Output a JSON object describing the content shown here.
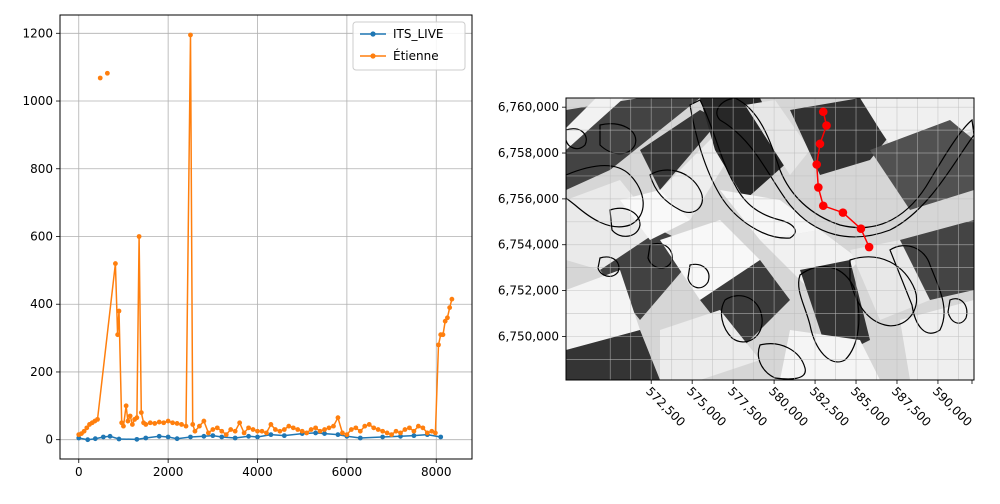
{
  "chart_data": [
    {
      "type": "line",
      "title": "",
      "xlabel": "",
      "ylabel": "",
      "xlim": [
        -420,
        8800
      ],
      "ylim": [
        -57,
        1254
      ],
      "xticks": [
        0,
        2000,
        4000,
        6000,
        8000
      ],
      "yticks": [
        0,
        200,
        400,
        600,
        800,
        1000,
        1200
      ],
      "grid": true,
      "legend": "top-right",
      "series": [
        {
          "name": "ITS_LIVE",
          "color": "#1f77b4",
          "x": [
            0,
            200,
            370,
            550,
            700,
            900,
            1300,
            1500,
            1800,
            2000,
            2200,
            2500,
            2800,
            3000,
            3200,
            3500,
            3800,
            4000,
            4300,
            4600,
            5000,
            5300,
            5500,
            5800,
            6000,
            6300,
            6800,
            7200,
            7500,
            7800,
            8100
          ],
          "values": [
            5,
            0,
            3,
            8,
            10,
            2,
            1,
            5,
            10,
            8,
            3,
            8,
            10,
            12,
            8,
            5,
            10,
            8,
            15,
            12,
            18,
            20,
            18,
            15,
            10,
            5,
            8,
            10,
            12,
            15,
            8
          ]
        },
        {
          "name": "Étienne",
          "color": "#ff7f0e",
          "x": [
            0,
            60,
            120,
            180,
            240,
            300,
            360,
            420,
            820,
            870,
            900,
            960,
            1000,
            1060,
            1100,
            1150,
            1200,
            1250,
            1300,
            1350,
            1400,
            1450,
            1500,
            1600,
            1700,
            1800,
            1900,
            2000,
            2100,
            2200,
            2300,
            2400,
            2500,
            2550,
            2600,
            2700,
            2800,
            2900,
            3000,
            3100,
            3200,
            3300,
            3400,
            3500,
            3600,
            3700,
            3800,
            3900,
            4000,
            4100,
            4200,
            4300,
            4400,
            4500,
            4600,
            4700,
            4800,
            4900,
            5000,
            5100,
            5200,
            5300,
            5400,
            5500,
            5600,
            5700,
            5800,
            5900,
            6000,
            6100,
            6200,
            6300,
            6400,
            6500,
            6600,
            6700,
            6800,
            6900,
            7000,
            7100,
            7200,
            7300,
            7400,
            7500,
            7600,
            7700,
            7800,
            7900,
            7980,
            8050,
            8100,
            8150,
            8200,
            8250,
            8300,
            8350
          ],
          "values": [
            15,
            18,
            25,
            35,
            45,
            50,
            55,
            60,
            520,
            310,
            380,
            50,
            40,
            100,
            55,
            70,
            45,
            60,
            65,
            600,
            80,
            50,
            45,
            50,
            48,
            52,
            50,
            55,
            50,
            48,
            45,
            40,
            1195,
            45,
            25,
            40,
            55,
            20,
            30,
            35,
            25,
            15,
            30,
            25,
            50,
            20,
            35,
            30,
            25,
            25,
            20,
            45,
            30,
            25,
            30,
            40,
            35,
            30,
            25,
            20,
            30,
            35,
            25,
            30,
            35,
            40,
            65,
            20,
            15,
            30,
            35,
            25,
            40,
            45,
            35,
            30,
            25,
            20,
            15,
            25,
            20,
            30,
            35,
            25,
            40,
            35,
            20,
            25,
            20,
            280,
            310,
            310,
            350,
            360,
            390,
            415
          ]
        }
      ],
      "scatter_points": {
        "series": "Étienne",
        "color": "#ff7f0e",
        "x": [
          480,
          640
        ],
        "values": [
          1068,
          1082
        ]
      }
    },
    {
      "type": "map",
      "title": "",
      "xlabel": "",
      "ylabel": "",
      "xlim": [
        567300,
        592200
      ],
      "ylim": [
        6748100,
        6760400
      ],
      "xticks": [
        572500,
        575000,
        577500,
        580000,
        582500,
        585000,
        587500,
        590000
      ],
      "xtick_labels": [
        "572,500",
        "575,000",
        "577,500",
        "580,000",
        "582,500",
        "585,000",
        "587,500",
        "590,000"
      ],
      "yticks": [
        6750000,
        6752000,
        6754000,
        6756000,
        6758000,
        6760000
      ],
      "ytick_labels": [
        "6,750,000",
        "6,752,000",
        "6,754,000",
        "6,756,000",
        "6,758,000",
        "6,760,000"
      ],
      "grid": true,
      "track": {
        "color": "#ff0000",
        "x": [
          583000,
          583200,
          582800,
          582600,
          582700,
          583000,
          584200,
          585300,
          585800
        ],
        "values": [
          6759800,
          6759200,
          6758400,
          6757500,
          6756500,
          6755700,
          6755400,
          6754700,
          6753900
        ]
      }
    }
  ]
}
